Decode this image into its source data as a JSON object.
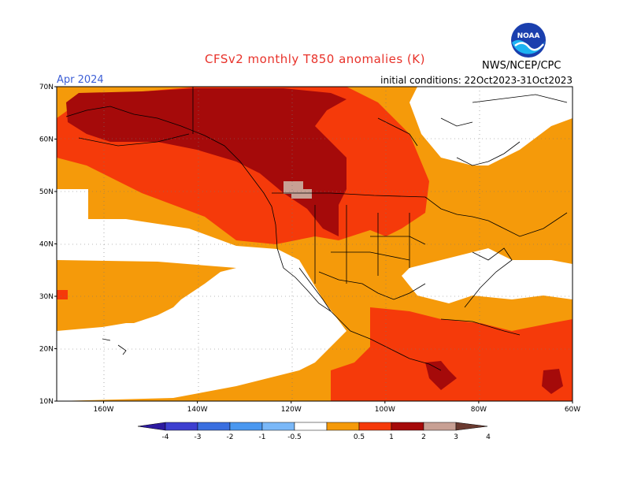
{
  "title": "CFSv2 monthly T850 anomalies (K)",
  "period": "Apr 2024",
  "initial_conditions": "initial conditions: 22Oct2023-31Oct2023",
  "agency": "NWS/NCEP/CPC",
  "logo_text": "NOAA",
  "map": {
    "lat_ticks": [
      "70N",
      "60N",
      "50N",
      "40N",
      "30N",
      "20N",
      "10N"
    ],
    "lon_ticks": [
      "160W",
      "140W",
      "120W",
      "100W",
      "80W",
      "60W"
    ],
    "lat_range": [
      10,
      70
    ],
    "lon_range": [
      -170,
      -60
    ],
    "grid": "dotted"
  },
  "legend": {
    "labels": [
      "-4",
      "-3",
      "-2",
      "-1",
      "-0.5",
      "0.5",
      "1",
      "2",
      "3",
      "4"
    ],
    "colors": [
      "#2d1aa0",
      "#3d3fd0",
      "#3a6fe0",
      "#4a98f0",
      "#7ab8f8",
      "#ffffff",
      "#f59a0a",
      "#f53a0a",
      "#a50a0a",
      "#c8a094",
      "#6a3a30"
    ]
  }
}
